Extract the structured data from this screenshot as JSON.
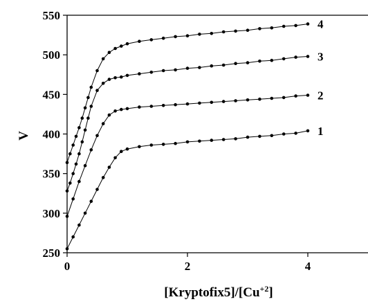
{
  "chart_data": {
    "type": "line",
    "title": "",
    "xlabel_main": "[Kryptofix5]/[Cu",
    "xlabel_sup": "+2",
    "xlabel_end": "]",
    "ylabel": "V",
    "xlim": [
      0,
      5
    ],
    "ylim": [
      250,
      550
    ],
    "xticks": [
      0,
      2,
      4
    ],
    "yticks": [
      250,
      300,
      350,
      400,
      450,
      500,
      550
    ],
    "grid": false,
    "legend": "labels at line ends",
    "series": [
      {
        "name": "1",
        "x": [
          0,
          0.1,
          0.2,
          0.3,
          0.4,
          0.5,
          0.6,
          0.7,
          0.8,
          0.9,
          1.0,
          1.2,
          1.4,
          1.6,
          1.8,
          2.0,
          2.2,
          2.4,
          2.6,
          2.8,
          3.0,
          3.2,
          3.4,
          3.6,
          3.8,
          4.0
        ],
        "y": [
          255,
          270,
          285,
          300,
          315,
          330,
          345,
          358,
          370,
          378,
          381,
          384,
          386,
          387,
          388,
          390,
          391,
          392,
          393,
          394,
          396,
          397,
          398,
          400,
          401,
          404
        ]
      },
      {
        "name": "2",
        "x": [
          0,
          0.1,
          0.2,
          0.3,
          0.4,
          0.5,
          0.6,
          0.7,
          0.8,
          0.9,
          1.0,
          1.2,
          1.4,
          1.6,
          1.8,
          2.0,
          2.2,
          2.4,
          2.6,
          2.8,
          3.0,
          3.2,
          3.4,
          3.6,
          3.8,
          4.0
        ],
        "y": [
          296,
          318,
          340,
          360,
          380,
          398,
          413,
          424,
          429,
          431,
          432,
          434,
          435,
          436,
          437,
          438,
          439,
          440,
          441,
          442,
          443,
          444,
          445,
          446,
          448,
          449
        ]
      },
      {
        "name": "3",
        "x": [
          0,
          0.05,
          0.1,
          0.15,
          0.2,
          0.25,
          0.3,
          0.35,
          0.4,
          0.5,
          0.6,
          0.7,
          0.8,
          0.9,
          1.0,
          1.2,
          1.4,
          1.6,
          1.8,
          2.0,
          2.2,
          2.4,
          2.6,
          2.8,
          3.0,
          3.2,
          3.4,
          3.6,
          3.8,
          4.0
        ],
        "y": [
          328,
          338,
          350,
          362,
          375,
          390,
          405,
          420,
          435,
          455,
          464,
          469,
          471,
          472,
          474,
          476,
          478,
          480,
          481,
          483,
          484,
          486,
          487,
          489,
          490,
          492,
          493,
          495,
          497,
          498
        ]
      },
      {
        "name": "4",
        "x": [
          0,
          0.05,
          0.1,
          0.15,
          0.2,
          0.25,
          0.3,
          0.35,
          0.4,
          0.5,
          0.6,
          0.7,
          0.8,
          0.9,
          1.0,
          1.2,
          1.4,
          1.6,
          1.8,
          2.0,
          2.2,
          2.4,
          2.6,
          2.8,
          3.0,
          3.2,
          3.4,
          3.6,
          3.8,
          4.0
        ],
        "y": [
          364,
          375,
          386,
          397,
          408,
          420,
          433,
          446,
          459,
          480,
          495,
          503,
          508,
          511,
          514,
          517,
          519,
          521,
          523,
          524,
          526,
          527,
          529,
          530,
          531,
          533,
          534,
          536,
          537,
          539
        ]
      }
    ]
  }
}
